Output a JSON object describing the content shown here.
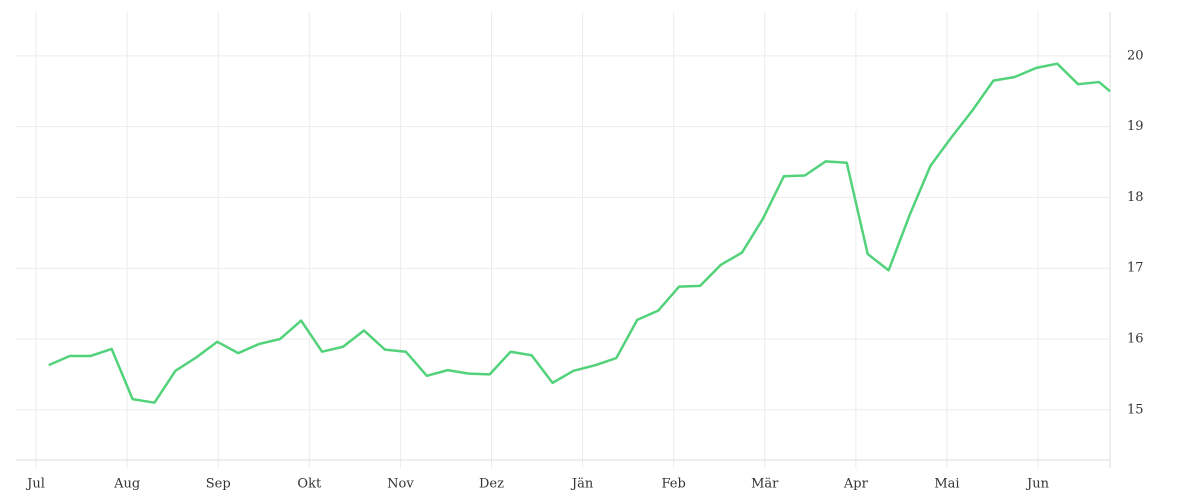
{
  "chart_data": {
    "type": "line",
    "x": [
      0.14,
      0.37,
      0.6,
      0.83,
      1.06,
      1.3,
      1.53,
      1.76,
      1.99,
      2.22,
      2.45,
      2.68,
      2.91,
      3.14,
      3.37,
      3.6,
      3.83,
      4.06,
      4.29,
      4.52,
      4.75,
      4.98,
      5.21,
      5.44,
      5.67,
      5.9,
      6.14,
      6.37,
      6.6,
      6.83,
      7.06,
      7.29,
      7.52,
      7.75,
      7.98,
      8.21,
      8.44,
      8.67,
      8.9,
      9.13,
      9.36,
      9.59,
      9.82,
      10.05,
      10.28,
      10.51,
      10.74,
      10.98,
      11.21,
      11.44,
      11.67,
      11.79
    ],
    "series": [
      {
        "color": "#52d27a",
        "values": [
          15.63,
          15.76,
          15.76,
          15.86,
          15.15,
          15.1,
          15.55,
          15.74,
          15.96,
          15.8,
          15.93,
          16.0,
          16.26,
          15.82,
          15.89,
          16.12,
          15.85,
          15.82,
          15.48,
          15.56,
          15.51,
          15.5,
          15.82,
          15.77,
          15.38,
          15.55,
          15.63,
          15.73,
          16.27,
          16.4,
          16.74,
          16.75,
          17.05,
          17.22,
          17.7,
          18.3,
          18.31,
          18.51,
          18.49,
          17.2,
          16.97,
          17.75,
          18.45,
          18.85,
          19.23,
          19.65,
          19.7,
          19.83,
          19.89,
          19.6,
          19.63,
          19.5
        ]
      }
    ],
    "xlim": [
      -0.22,
      11.79
    ],
    "xticks": [
      {
        "value": 0,
        "label": "Jul"
      },
      {
        "value": 1,
        "label": "Aug"
      },
      {
        "value": 2,
        "label": "Sep"
      },
      {
        "value": 3,
        "label": "Okt"
      },
      {
        "value": 4,
        "label": "Nov"
      },
      {
        "value": 5,
        "label": "Dez"
      },
      {
        "value": 6,
        "label": "Jän"
      },
      {
        "value": 7,
        "label": "Feb"
      },
      {
        "value": 8,
        "label": "Mär"
      },
      {
        "value": 9,
        "label": "Apr"
      },
      {
        "value": 10,
        "label": "Mai"
      },
      {
        "value": 11,
        "label": "Jun"
      }
    ],
    "ylim": [
      14.29,
      20.62
    ],
    "yticks": [
      15,
      16,
      17,
      18,
      19,
      20
    ],
    "grid": true,
    "y_axis_side": "right"
  }
}
